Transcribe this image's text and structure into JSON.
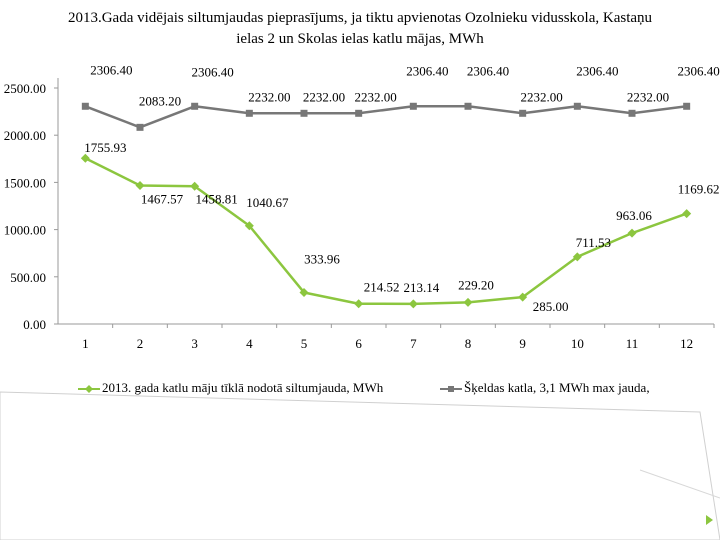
{
  "title_line1": "2013.Gada vidējais  siltumjaudas pieprasījums, ja tiktu apvienotas  Ozolnieku vidusskola, Kastaņu",
  "title_line2": "ielas 2 un  Skolas ielas katlu mājas,  MWh",
  "colors": {
    "series1": "#8cc63f",
    "series2": "#777777",
    "grid": "#9a9a9a",
    "deco": "#cccccc"
  },
  "chart_data": {
    "type": "line",
    "x": [
      "1",
      "2",
      "3",
      "4",
      "5",
      "6",
      "7",
      "8",
      "9",
      "10",
      "11",
      "12"
    ],
    "y_ticks": [
      "0.00",
      "500.00",
      "1000.00",
      "1500.00",
      "2000.00",
      "2500.00"
    ],
    "ylim": [
      0,
      2500
    ],
    "series": [
      {
        "name": "2013. gada katlu māju tīklā nodotā siltumjauda, MWh",
        "values": [
          1755.93,
          1467.57,
          1458.81,
          1040.67,
          333.96,
          214.52,
          213.14,
          229.2,
          285.0,
          711.53,
          963.06,
          1169.62
        ],
        "labels": [
          "1755.93",
          "1467.57",
          "1458.81",
          "1040.67",
          "333.96",
          "214.52",
          "213.14",
          "229.20",
          "285.00",
          "711.53",
          "963.06",
          "1169.62"
        ],
        "marker": "diamond",
        "color": "#8cc63f"
      },
      {
        "name": "Šķeldas katla, 3,1 MWh  max jauda,",
        "values": [
          2306.4,
          2083.2,
          2306.4,
          2232.0,
          2232.0,
          2232.0,
          2306.4,
          2306.4,
          2232.0,
          2306.4,
          2232.0,
          2306.4
        ],
        "labels": [
          "2306.40",
          "2083.20",
          "2306.40",
          "2232.00",
          "2232.00",
          "2232.00",
          "2306.40",
          "2306.40",
          "2232.00",
          "2306.40",
          "2232.00",
          "2306.40"
        ],
        "marker": "square",
        "color": "#777777"
      }
    ],
    "grid": false,
    "legend": "bottom"
  }
}
